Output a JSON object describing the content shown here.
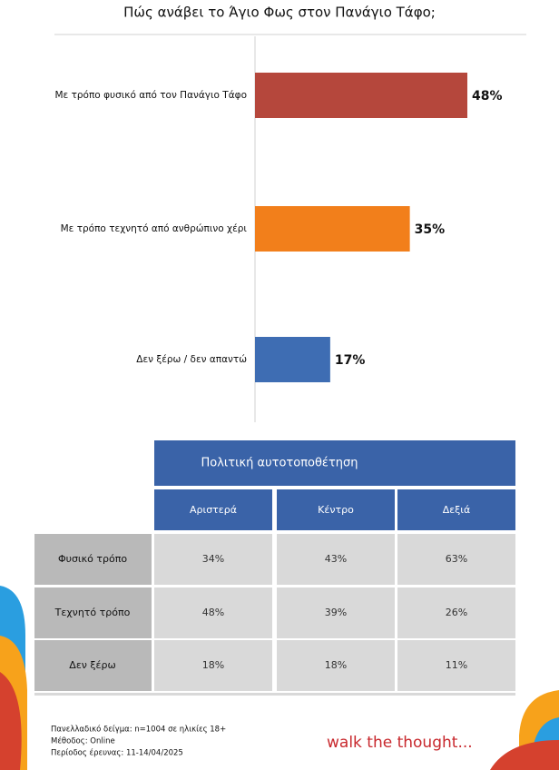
{
  "chart_data": {
    "type": "bar",
    "title": "Πώς ανάβει το Άγιο Φως στον Πανάγιο Τάφο;",
    "categories": [
      "Με τρόπο φυσικό από τον Πανάγιο Τάφο",
      "Με τρόπο τεχνητό από ανθρώπινο χέρι",
      "Δεν ξέρω / δεν απαντώ"
    ],
    "values": [
      48,
      35,
      17
    ],
    "value_labels": [
      "48%",
      "35%",
      "17%"
    ],
    "colors": [
      "#b5473c",
      "#f27f1b",
      "#3e6db3"
    ]
  },
  "table": {
    "title": "Πολιτική αυτοτοποθέτηση",
    "columns": [
      "Αριστερά",
      "Κέντρο",
      "Δεξιά"
    ],
    "rows": [
      [
        "Φυσικό τρόπο",
        "34%",
        "43%",
        "63%"
      ],
      [
        "Τεχνητό τρόπο",
        "48%",
        "39%",
        "26%"
      ],
      [
        "Δεν ξέρω",
        "18%",
        "18%",
        "11%"
      ]
    ]
  },
  "footer": {
    "notes": [
      "Πανελλαδικό δείγμα: n=1004 σε ηλικίες 18+",
      "Μέθοδος: Online",
      "Περίοδος έρευνας: 11-14/04/2025"
    ],
    "tagline": "walk the thought..."
  }
}
